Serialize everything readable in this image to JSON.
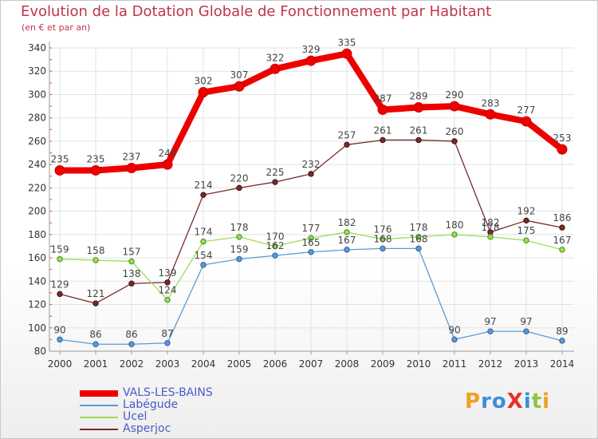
{
  "chart_data": {
    "type": "line",
    "title": "Evolution de la Dotation Globale de Fonctionnement par Habitant",
    "subtitle": "(en € et par an)",
    "x": [
      "2000",
      "2001",
      "2002",
      "2003",
      "2004",
      "2005",
      "2006",
      "2007",
      "2008",
      "2009",
      "2010",
      "2011",
      "2012",
      "2013",
      "2014"
    ],
    "ylim": [
      80,
      340
    ],
    "yticks": [
      80,
      100,
      120,
      140,
      160,
      180,
      200,
      220,
      240,
      260,
      280,
      300,
      320,
      340
    ],
    "grid": true,
    "legend_position": "bottom-left",
    "series": [
      {
        "name": "VALS-LES-BAINS",
        "color": "#ee0000",
        "values": [
          235,
          235,
          237,
          240,
          302,
          307,
          322,
          329,
          335,
          287,
          289,
          290,
          283,
          277,
          253
        ]
      },
      {
        "name": "Labégude",
        "color": "#5b9bd5",
        "values": [
          90,
          86,
          86,
          87,
          154,
          159,
          162,
          165,
          167,
          168,
          168,
          90,
          97,
          97,
          89
        ]
      },
      {
        "name": "Ucel",
        "color": "#99dd55",
        "values": [
          159,
          158,
          157,
          124,
          174,
          178,
          170,
          177,
          182,
          176,
          178,
          180,
          178,
          175,
          167
        ]
      },
      {
        "name": "Asperjoc",
        "color": "#7a2a2a",
        "values": [
          129,
          121,
          138,
          139,
          214,
          220,
          225,
          232,
          257,
          261,
          261,
          260,
          182,
          192,
          186
        ]
      }
    ]
  },
  "brand": {
    "text": "ProXiti",
    "letters": [
      {
        "ch": "P",
        "color": "#f0a020"
      },
      {
        "ch": "r",
        "color": "#3a8fd8"
      },
      {
        "ch": "o",
        "color": "#3a8fd8"
      },
      {
        "ch": "X",
        "color": "#e8302a"
      },
      {
        "ch": "i",
        "color": "#3a8fd8"
      },
      {
        "ch": "t",
        "color": "#8cc63f"
      },
      {
        "ch": "i",
        "color": "#f0a020"
      }
    ]
  }
}
